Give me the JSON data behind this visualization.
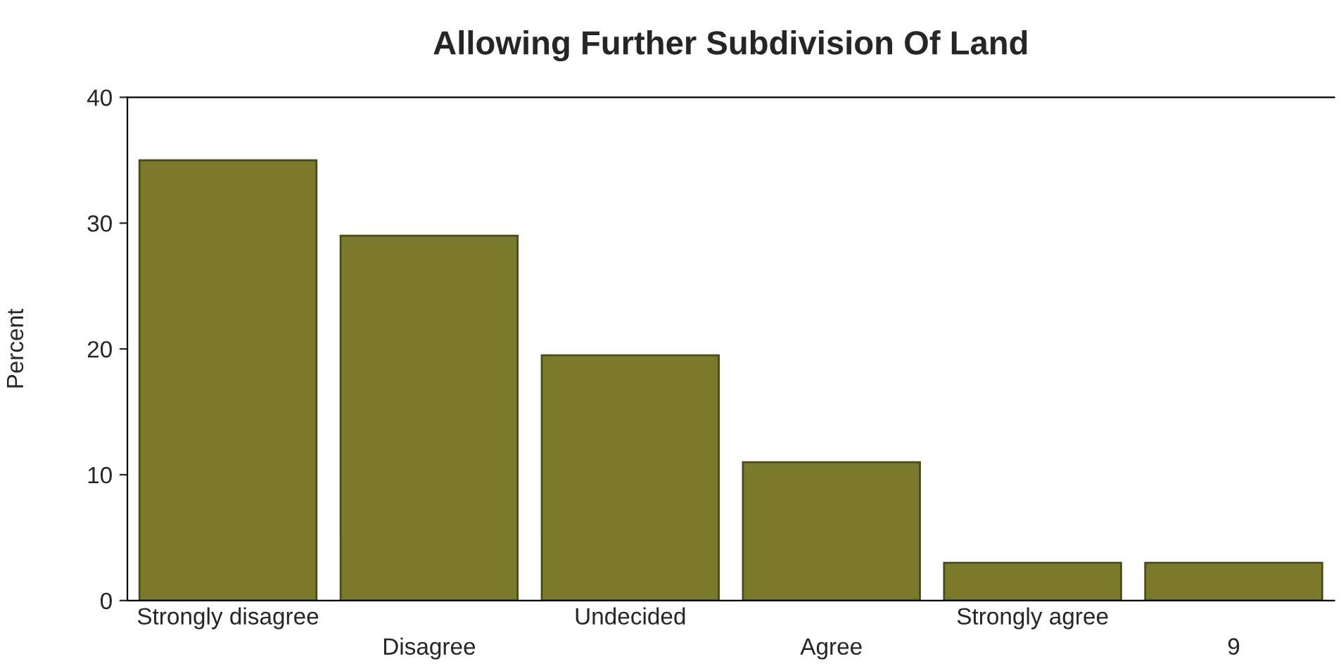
{
  "chart_data": {
    "type": "bar",
    "title": "Allowing Further Subdivision Of Land",
    "ylabel": "Percent",
    "categories": [
      "Strongly disagree",
      "Disagree",
      "Undecided",
      "Agree",
      "Strongly agree",
      "9"
    ],
    "values": [
      35,
      29,
      19.5,
      11,
      3,
      3
    ],
    "color": "#7b7a2c",
    "ylim": [
      0,
      40
    ],
    "yticks": [
      0,
      10,
      20,
      30,
      40
    ],
    "grid": false,
    "legend": false
  }
}
